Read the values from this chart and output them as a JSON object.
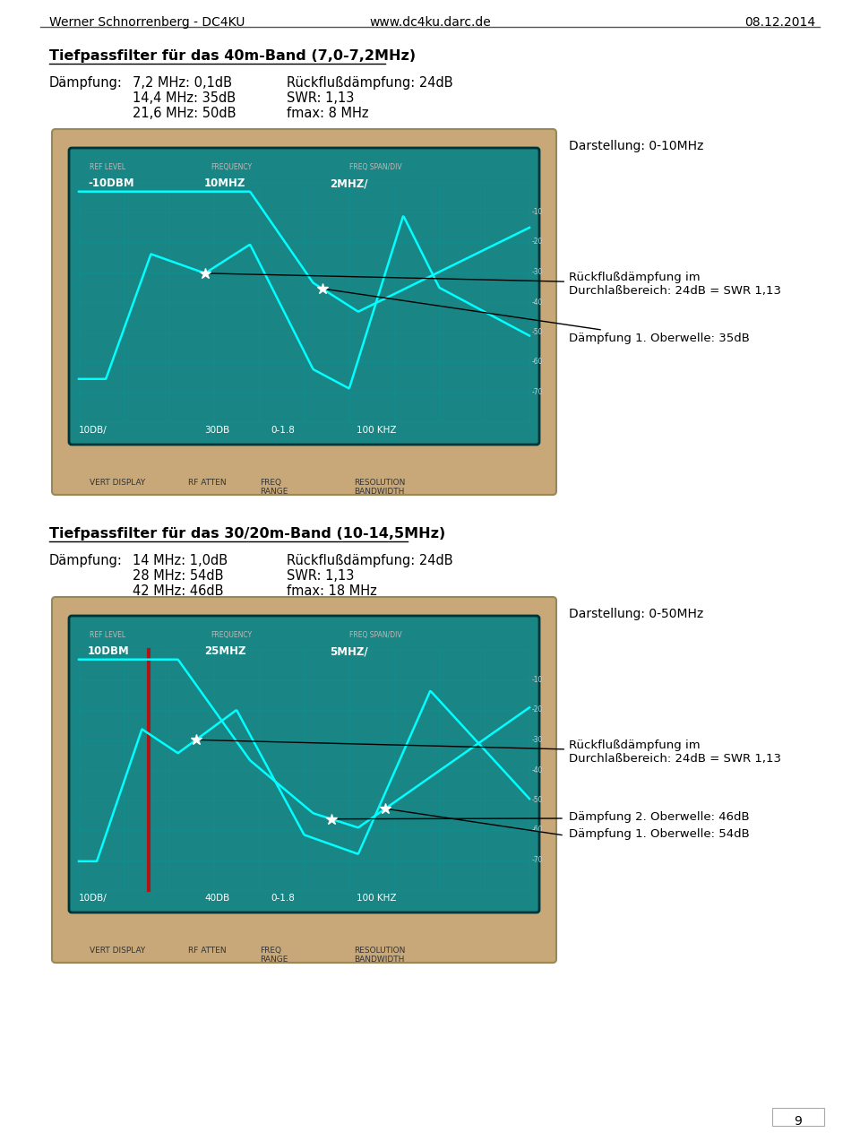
{
  "header_left": "Werner Schnorrenberg - DC4KU",
  "header_center": "www.dc4ku.darc.de",
  "header_right": "08.12.2014",
  "section1_title": "Tiefpassfilter für das 40m-Band (7,0-7,2MHz)",
  "section1_lines": [
    [
      "Dämpfung:",
      "7,2 MHz: 0,1dB",
      "Rückflußdämpfung: 24dB"
    ],
    [
      "",
      "14,4 MHz: 35dB",
      "SWR: 1,13"
    ],
    [
      "",
      "21,6 MHz: 50dB",
      "fmax: 8 MHz"
    ]
  ],
  "section1_darstellung": "Darstellung: 0-10MHz",
  "section1_ann1": "Rückflußdämpfung im\nDurchlaßbereich: 24dB = SWR 1,13",
  "section1_ann2": "Dämpfung 1. Oberwelle: 35dB",
  "section2_title": "Tiefpassfilter für das 30/20m-Band (10-14,5MHz)",
  "section2_lines": [
    [
      "Dämpfung:",
      "14 MHz: 1,0dB",
      "Rückflußdämpfung: 24dB"
    ],
    [
      "",
      "28 MHz: 54dB",
      "SWR: 1,13"
    ],
    [
      "",
      "42 MHz: 46dB",
      "fmax: 18 MHz"
    ]
  ],
  "section2_darstellung": "Darstellung: 0-50MHz",
  "section2_ann1": "Rückflußdämpfung im\nDurchlaßbereich: 24dB = SWR 1,13",
  "section2_ann2a": "Dämpfung 2. Oberwelle: 46dB",
  "section2_ann2b": "Dämpfung 1. Oberwelle: 54dB",
  "page_number": "9",
  "bg_color": "#ffffff",
  "text_color": "#000000",
  "scope_frame_color": "#c8a878",
  "scope_screen_color": "#1a8585",
  "grid_color": "#009999",
  "trace_color": "#00ffff",
  "marker_color": "#cc0000"
}
